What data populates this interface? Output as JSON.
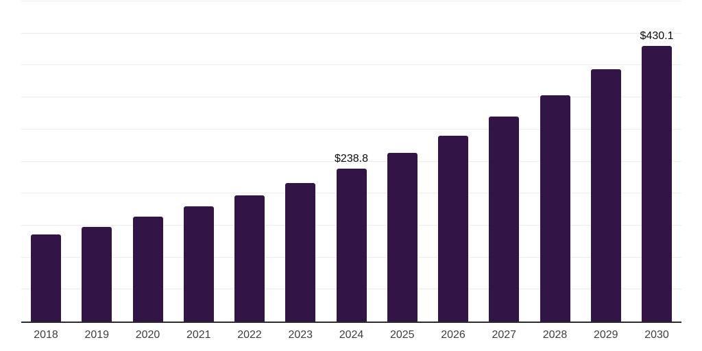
{
  "chart_data": {
    "type": "bar",
    "title": "",
    "xlabel": "",
    "ylabel": "",
    "categories": [
      "2018",
      "2019",
      "2020",
      "2021",
      "2022",
      "2023",
      "2024",
      "2025",
      "2026",
      "2027",
      "2028",
      "2029",
      "2030"
    ],
    "values": [
      136.5,
      148.0,
      164.0,
      180.0,
      197.5,
      216.5,
      238.8,
      263.5,
      290.5,
      320.5,
      353.5,
      394.0,
      430.1
    ],
    "data_labels": [
      null,
      null,
      null,
      null,
      null,
      null,
      "$238.8",
      null,
      null,
      null,
      null,
      null,
      "$430.1"
    ],
    "ylim": [
      0,
      500
    ],
    "gridline_step": 50,
    "grid": "horizontal-only",
    "legend": "none",
    "y_tick_labels_visible": false,
    "colors": {
      "bar": "#321447",
      "axis_line": "#2b2b2b",
      "gridline": "#ededed",
      "tick_label": "#3d3d3d",
      "value_label": "#0a0a0a",
      "background": "#ffffff"
    }
  }
}
